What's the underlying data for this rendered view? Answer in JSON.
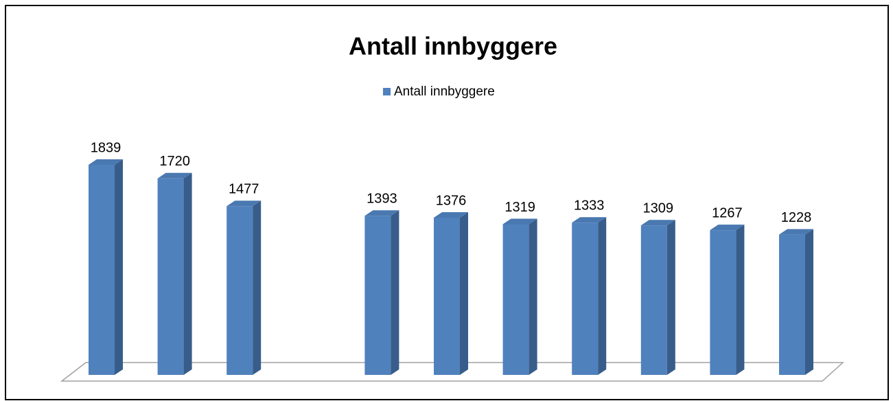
{
  "chart_data": {
    "type": "bar3d",
    "title": "Antall innbyggere",
    "categories": [
      null,
      null,
      null,
      null,
      null,
      null,
      null,
      null,
      null,
      null,
      null
    ],
    "series": [
      {
        "name": "Antall innbyggere",
        "color": "#4f81bd",
        "values": [
          1839,
          1720,
          1477,
          null,
          1393,
          1376,
          1319,
          1333,
          1309,
          1267,
          1228
        ]
      }
    ],
    "legend": "top"
  }
}
